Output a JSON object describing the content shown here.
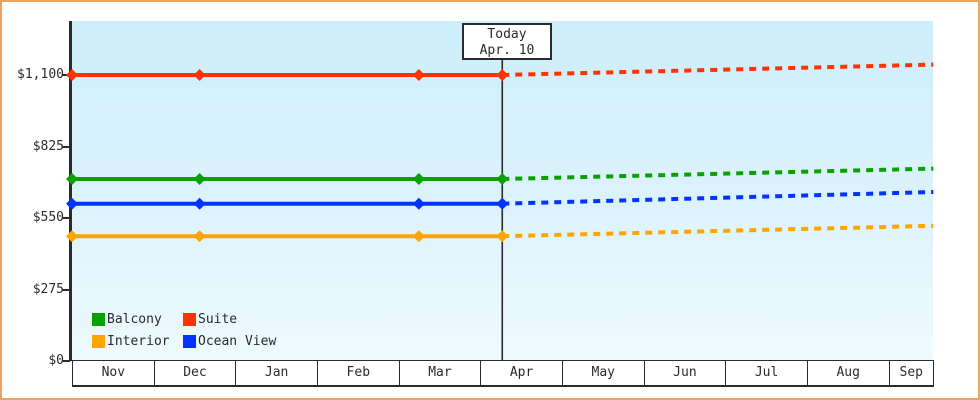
{
  "window": {
    "border_color": "#e8a45c",
    "plot_background_top": "#cdeefb",
    "plot_background_bottom": "#eefafe",
    "axis_color": "#2b2b2b"
  },
  "chart_data": {
    "type": "line",
    "title": "",
    "xlabel": "",
    "ylabel": "",
    "ylim": [
      0,
      1100
    ],
    "grid": false,
    "legend_position": "inside-bottom-left",
    "x_months": [
      "Nov",
      "Dec",
      "Jan",
      "Feb",
      "Mar",
      "Apr",
      "May",
      "Jun",
      "Jul",
      "Aug",
      "Sep"
    ],
    "y_ticks": [
      {
        "label": "$0",
        "value": 0
      },
      {
        "label": "$275",
        "value": 275
      },
      {
        "label": "$550",
        "value": 550
      },
      {
        "label": "$825",
        "value": 825
      },
      {
        "label": "$1,100",
        "value": 1100
      }
    ],
    "today": {
      "label": "Today",
      "date": "Apr. 10"
    },
    "today_month_frac": 5.26,
    "sample_x_month_fracs": [
      0,
      1.56,
      4.24,
      5.26
    ],
    "projection_end_month_frac": 10.53,
    "series": [
      {
        "name": "Suite",
        "color": "#ff3300",
        "current_price": 1100,
        "projected_price": 1140
      },
      {
        "name": "Balcony",
        "color": "#0aa000",
        "current_price": 700,
        "projected_price": 740
      },
      {
        "name": "Ocean View",
        "color": "#0433ff",
        "current_price": 605,
        "projected_price": 650
      },
      {
        "name": "Interior",
        "color": "#ffa500",
        "current_price": 480,
        "projected_price": 520
      }
    ],
    "legend_items": [
      {
        "name": "Balcony",
        "color": "#0aa000"
      },
      {
        "name": "Suite",
        "color": "#ff3300"
      },
      {
        "name": "Interior",
        "color": "#ffa500"
      },
      {
        "name": "Ocean View",
        "color": "#0433ff"
      }
    ]
  }
}
